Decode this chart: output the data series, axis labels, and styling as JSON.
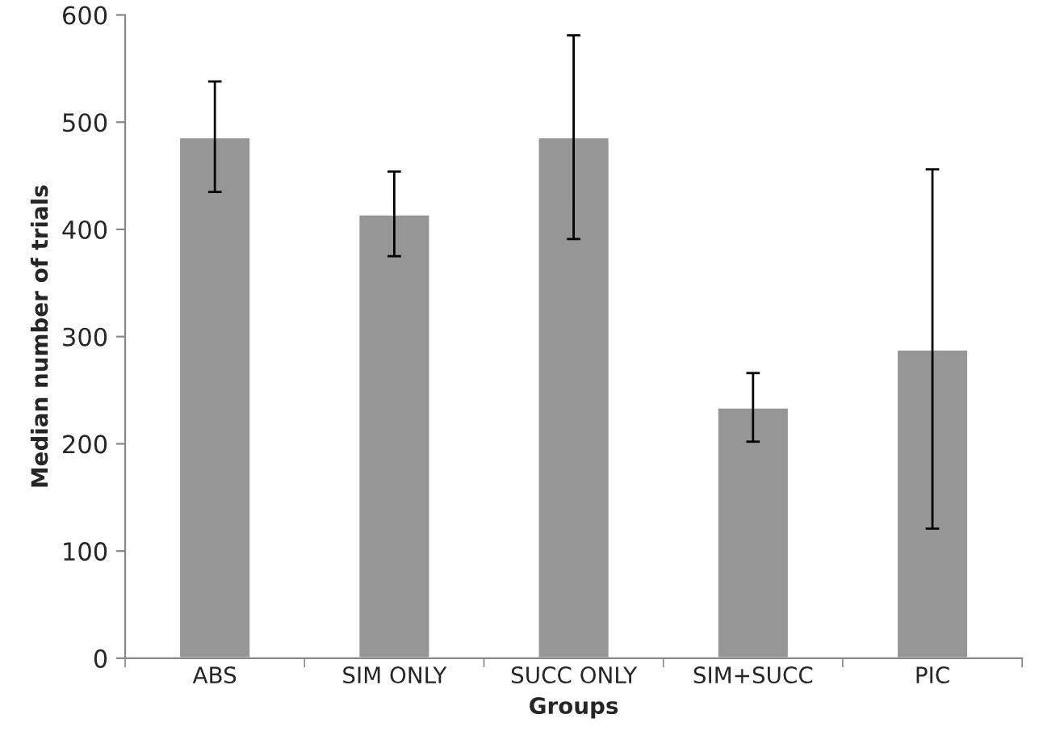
{
  "chart_data": {
    "type": "bar",
    "xlabel": "Groups",
    "ylabel": "Median number of trials",
    "categories": [
      "ABS",
      "SIM ONLY",
      "SUCC ONLY",
      "SIM+SUCC",
      "PIC"
    ],
    "values": [
      486,
      414,
      486,
      234,
      288
    ],
    "errors": [
      [
        435,
        538
      ],
      [
        375,
        454
      ],
      [
        391,
        581
      ],
      [
        202,
        266
      ],
      [
        121,
        456
      ]
    ],
    "color": "#969696",
    "ylim": [
      0,
      600
    ],
    "yticks": [
      0,
      100,
      200,
      300,
      400,
      500,
      600
    ],
    "grid": false,
    "legend": false
  }
}
